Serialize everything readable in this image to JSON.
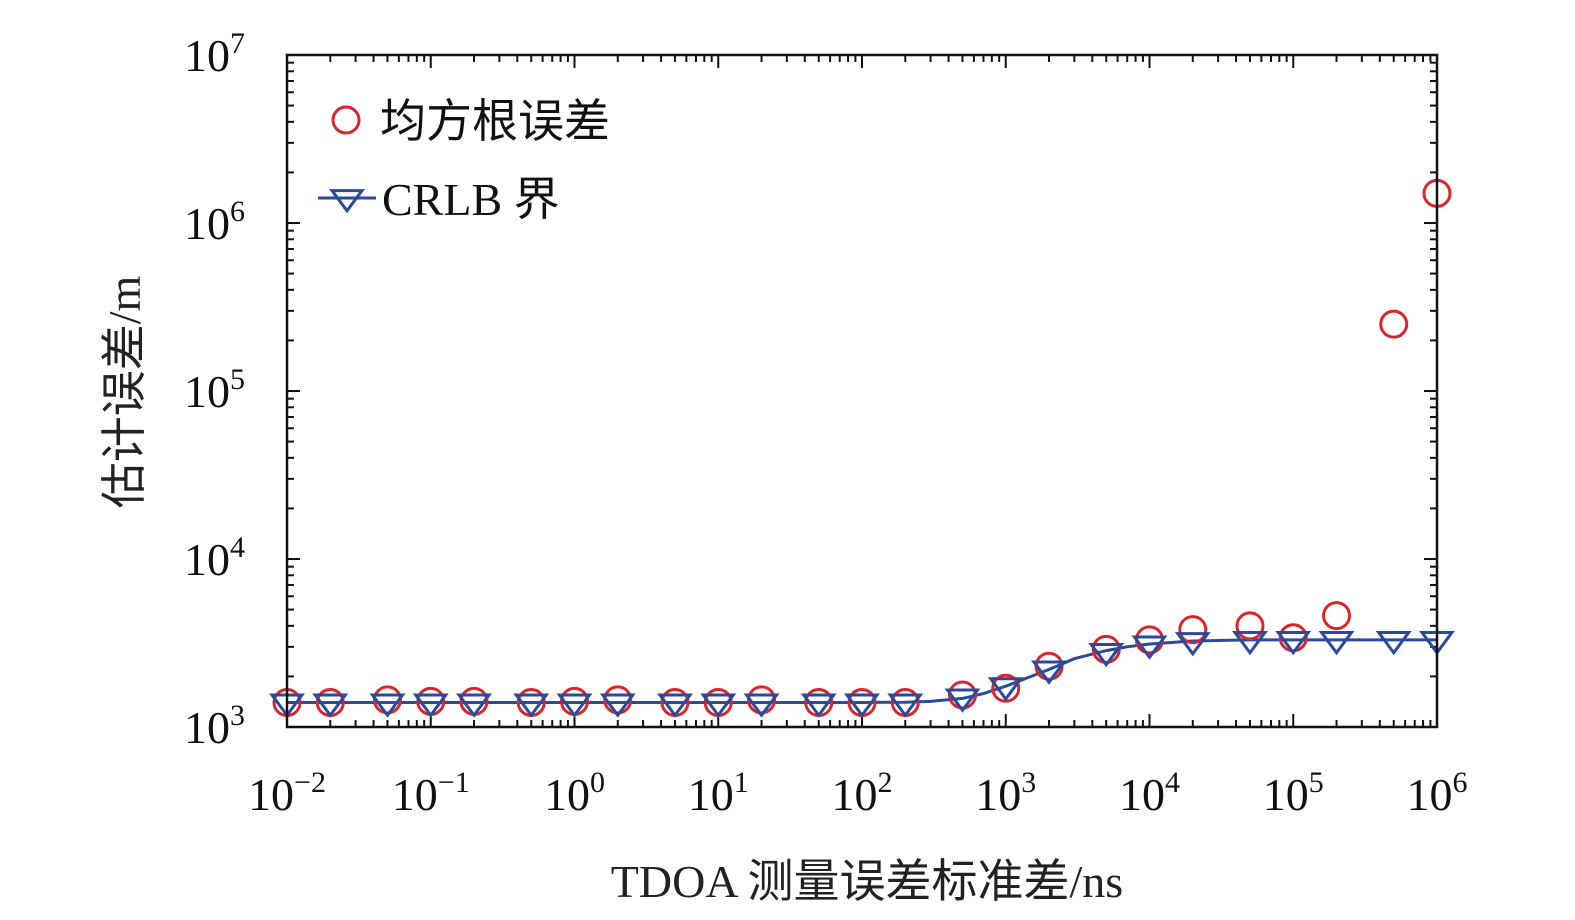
{
  "chart_data": {
    "type": "scatter",
    "xlabel": "TDOA 测量误差标准差/ns",
    "ylabel": "估计误差/m",
    "x_scale": "log",
    "y_scale": "log",
    "xlim": [
      0.01,
      1000000
    ],
    "ylim": [
      1000,
      10000000
    ],
    "x_ticks": [
      {
        "base": "10",
        "exp": "−2",
        "value": 0.01
      },
      {
        "base": "10",
        "exp": "−1",
        "value": 0.1
      },
      {
        "base": "10",
        "exp": "0",
        "value": 1
      },
      {
        "base": "10",
        "exp": "1",
        "value": 10
      },
      {
        "base": "10",
        "exp": "2",
        "value": 100
      },
      {
        "base": "10",
        "exp": "3",
        "value": 1000
      },
      {
        "base": "10",
        "exp": "4",
        "value": 10000
      },
      {
        "base": "10",
        "exp": "5",
        "value": 100000
      },
      {
        "base": "10",
        "exp": "6",
        "value": 1000000
      }
    ],
    "y_ticks": [
      {
        "base": "10",
        "exp": "3",
        "value": 1000
      },
      {
        "base": "10",
        "exp": "4",
        "value": 10000
      },
      {
        "base": "10",
        "exp": "5",
        "value": 100000
      },
      {
        "base": "10",
        "exp": "6",
        "value": 1000000
      },
      {
        "base": "10",
        "exp": "7",
        "value": 10000000
      }
    ],
    "legend_position": "top-left",
    "grid": false,
    "series": [
      {
        "name": "均方根误差",
        "marker": "circle",
        "color": "#d9262c",
        "line": false,
        "points": [
          [
            0.01,
            1400
          ],
          [
            0.02,
            1400
          ],
          [
            0.05,
            1450
          ],
          [
            0.1,
            1420
          ],
          [
            0.2,
            1420
          ],
          [
            0.5,
            1400
          ],
          [
            1,
            1420
          ],
          [
            2,
            1450
          ],
          [
            5,
            1400
          ],
          [
            10,
            1400
          ],
          [
            20,
            1450
          ],
          [
            50,
            1400
          ],
          [
            100,
            1400
          ],
          [
            200,
            1400
          ],
          [
            500,
            1550
          ],
          [
            1000,
            1700
          ],
          [
            2000,
            2300
          ],
          [
            5000,
            2900
          ],
          [
            10000,
            3300
          ],
          [
            20000,
            3800
          ],
          [
            50000,
            4000
          ],
          [
            100000,
            3400
          ],
          [
            200000,
            4600
          ],
          [
            500000,
            250000
          ],
          [
            1000000,
            1500000
          ]
        ]
      },
      {
        "name": "CRLB 界",
        "marker": "triangle-down",
        "color": "#2b4a9c",
        "line": true,
        "points": [
          [
            0.01,
            1400
          ],
          [
            0.02,
            1400
          ],
          [
            0.05,
            1400
          ],
          [
            0.1,
            1400
          ],
          [
            0.2,
            1400
          ],
          [
            0.5,
            1400
          ],
          [
            1,
            1400
          ],
          [
            2,
            1400
          ],
          [
            5,
            1400
          ],
          [
            10,
            1400
          ],
          [
            20,
            1400
          ],
          [
            50,
            1400
          ],
          [
            100,
            1400
          ],
          [
            200,
            1400
          ],
          [
            500,
            1500
          ],
          [
            1000,
            1750
          ],
          [
            2000,
            2200
          ],
          [
            5000,
            2800
          ],
          [
            10000,
            3100
          ],
          [
            20000,
            3250
          ],
          [
            50000,
            3300
          ],
          [
            100000,
            3300
          ],
          [
            200000,
            3300
          ],
          [
            500000,
            3300
          ],
          [
            1000000,
            3300
          ]
        ],
        "curve": [
          [
            0.01,
            1400
          ],
          [
            100,
            1400
          ],
          [
            200,
            1405
          ],
          [
            300,
            1420
          ],
          [
            500,
            1480
          ],
          [
            700,
            1580
          ],
          [
            1000,
            1750
          ],
          [
            1500,
            2000
          ],
          [
            2000,
            2200
          ],
          [
            3000,
            2550
          ],
          [
            5000,
            2850
          ],
          [
            7000,
            3000
          ],
          [
            10000,
            3120
          ],
          [
            20000,
            3250
          ],
          [
            50000,
            3300
          ],
          [
            1000000,
            3300
          ]
        ]
      }
    ]
  }
}
